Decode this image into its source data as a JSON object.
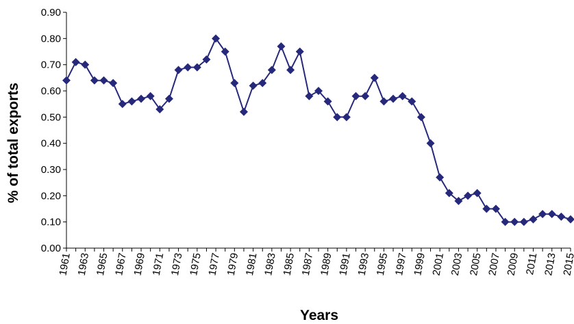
{
  "chart_data": {
    "type": "line",
    "title": "",
    "xlabel": "Years",
    "ylabel": "% of total exports",
    "ylim": [
      0,
      0.9
    ],
    "yticks": [
      "0.00",
      "0.10",
      "0.20",
      "0.30",
      "0.40",
      "0.50",
      "0.60",
      "0.70",
      "0.80",
      "0.90"
    ],
    "xtick_labels": [
      "1961",
      "1963",
      "1965",
      "1967",
      "1969",
      "1971",
      "1973",
      "1975",
      "1977",
      "1979",
      "1981",
      "1983",
      "1985",
      "1987",
      "1989",
      "1991",
      "1993",
      "1995",
      "1997",
      "1999",
      "2001",
      "2003",
      "2005",
      "2007",
      "2009",
      "2011",
      "2013",
      "2015"
    ],
    "grid": false,
    "legend": "none",
    "line_color": "#26287a",
    "marker": "diamond",
    "x": [
      1961,
      1962,
      1963,
      1964,
      1965,
      1966,
      1967,
      1968,
      1969,
      1970,
      1971,
      1972,
      1973,
      1974,
      1975,
      1976,
      1977,
      1978,
      1979,
      1980,
      1981,
      1982,
      1983,
      1984,
      1985,
      1986,
      1987,
      1988,
      1989,
      1990,
      1991,
      1992,
      1993,
      1994,
      1995,
      1996,
      1997,
      1998,
      1999,
      2000,
      2001,
      2002,
      2003,
      2004,
      2005,
      2006,
      2007,
      2008,
      2009,
      2010,
      2011,
      2012,
      2013,
      2014,
      2015
    ],
    "series": [
      {
        "values": [
          0.64,
          0.71,
          0.7,
          0.64,
          0.64,
          0.63,
          0.55,
          0.56,
          0.57,
          0.58,
          0.53,
          0.57,
          0.68,
          0.69,
          0.69,
          0.72,
          0.8,
          0.75,
          0.63,
          0.52,
          0.62,
          0.63,
          0.68,
          0.77,
          0.68,
          0.75,
          0.58,
          0.6,
          0.56,
          0.5,
          0.5,
          0.58,
          0.58,
          0.65,
          0.56,
          0.57,
          0.58,
          0.56,
          0.5,
          0.4,
          0.27,
          0.21,
          0.18,
          0.2,
          0.21,
          0.15,
          0.15,
          0.1,
          0.1,
          0.1,
          0.11,
          0.13,
          0.13,
          0.12,
          0.11
        ]
      }
    ]
  }
}
